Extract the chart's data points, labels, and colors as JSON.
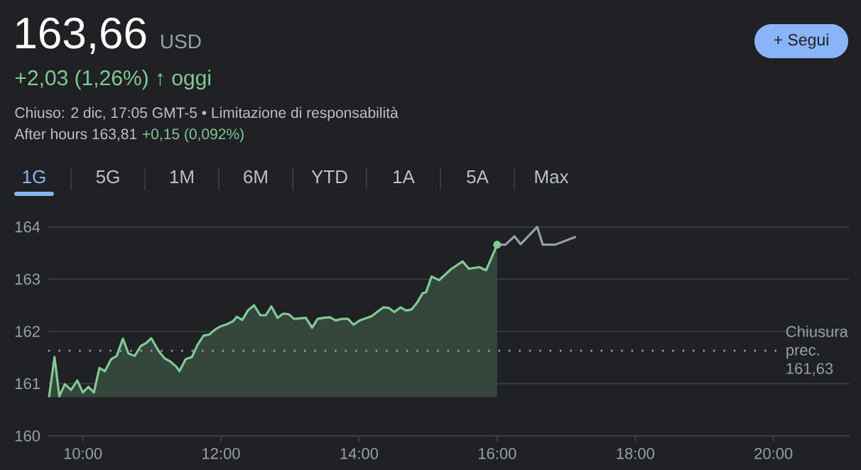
{
  "chart_data": {
    "type": "area",
    "title": "163,66",
    "annotations": [
      "USD",
      "+2,03 (1,26%) ↑ oggi",
      "Chiuso: 2 dic, 17:05 GMT-5 • Limitazione di responsabilità",
      "After hours 163,81",
      "+0,15 (0,092%)",
      "1G",
      "5G",
      "1M",
      "6M",
      "YTD",
      "1A",
      "5A",
      "Max",
      "+ Segui"
    ],
    "series": [
      {
        "color": "#81c995",
        "x": [
          9.51,
          9.59,
          9.66,
          9.74,
          9.83,
          9.92,
          10.0,
          10.08,
          10.16,
          10.24,
          10.32,
          10.41,
          10.49,
          10.58,
          10.66,
          10.75,
          10.84,
          10.92,
          10.99,
          11.1,
          11.18,
          11.27,
          11.35,
          11.4,
          11.49,
          11.58,
          11.66,
          11.75,
          11.83,
          11.92,
          12.0,
          12.09,
          12.17,
          12.23,
          12.31,
          12.39,
          12.48,
          12.57,
          12.65,
          12.73,
          12.82,
          12.9,
          12.98,
          13.06,
          13.15,
          13.23,
          13.32,
          13.4,
          13.49,
          13.58,
          13.66,
          13.75,
          13.84,
          13.92,
          14.01,
          14.09,
          14.18,
          14.26,
          14.35,
          14.43,
          14.51,
          14.6,
          14.68,
          14.76,
          14.84,
          14.92,
          14.97,
          15.05,
          15.16,
          15.33,
          15.5,
          15.59,
          15.74,
          15.84,
          16.0
        ],
        "values": [
          160.74,
          161.51,
          160.76,
          160.99,
          160.88,
          161.06,
          160.83,
          160.94,
          160.83,
          161.3,
          161.24,
          161.47,
          161.53,
          161.86,
          161.58,
          161.53,
          161.72,
          161.78,
          161.87,
          161.62,
          161.49,
          161.42,
          161.33,
          161.24,
          161.47,
          161.51,
          161.74,
          161.92,
          161.94,
          162.04,
          162.1,
          162.14,
          162.19,
          162.28,
          162.22,
          162.4,
          162.5,
          162.31,
          162.31,
          162.48,
          162.26,
          162.34,
          162.33,
          162.24,
          162.25,
          162.26,
          162.07,
          162.24,
          162.26,
          162.27,
          162.21,
          162.24,
          162.24,
          162.13,
          162.21,
          162.25,
          162.29,
          162.37,
          162.46,
          162.45,
          162.37,
          162.46,
          162.4,
          162.42,
          162.55,
          162.73,
          162.75,
          163.05,
          162.98,
          163.19,
          163.34,
          163.2,
          163.23,
          163.17,
          163.66
        ]
      },
      {
        "type": "line",
        "color": "#9aa0a6",
        "x": [
          16.0,
          16.12,
          16.25,
          16.34,
          16.58,
          16.66,
          16.84,
          17.14
        ],
        "values": [
          163.66,
          163.66,
          163.82,
          163.67,
          164.0,
          163.66,
          163.66,
          163.81
        ]
      }
    ],
    "xlim": [
      9.5,
      21.1
    ],
    "ylim": [
      160,
      164
    ],
    "xticks": [
      {
        "value": 10,
        "label": "10:00"
      },
      {
        "value": 12,
        "label": "12:00"
      },
      {
        "value": 14,
        "label": "14:00"
      },
      {
        "value": 16,
        "label": "16:00"
      },
      {
        "value": 18,
        "label": "18:00"
      },
      {
        "value": 20,
        "label": "20:00"
      }
    ],
    "yticks": [
      160,
      161,
      162,
      163,
      164
    ],
    "grid": "y",
    "ref_lines": [
      {
        "axis": "y",
        "value": 161.63,
        "label": "Chiusura prec. 161,63",
        "color": "#9aa0a6",
        "line_style": "dotted"
      }
    ]
  }
}
